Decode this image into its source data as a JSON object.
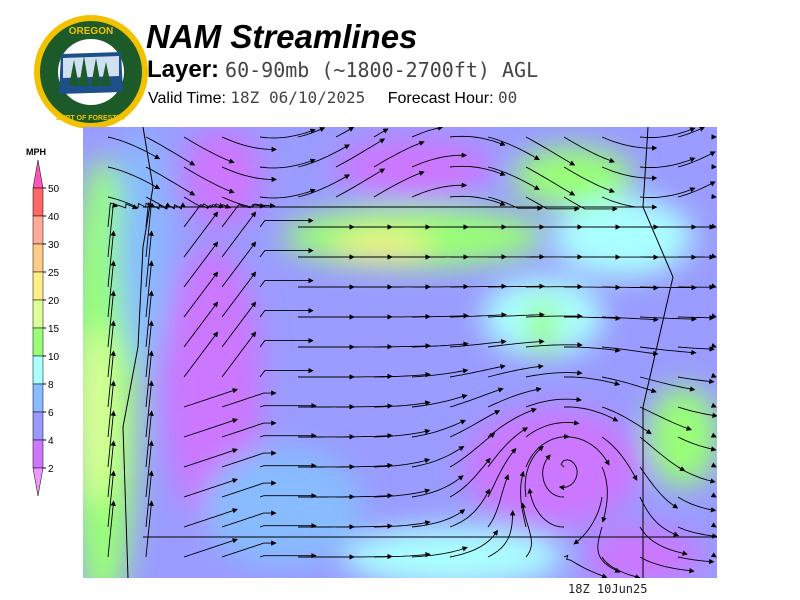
{
  "logo": {
    "text_top": "OREGON",
    "text_bottom": "DEPARTMENT OF FORESTRY"
  },
  "header": {
    "title": "NAM Streamlines",
    "layer_label": "Layer:",
    "layer_value": "60-90mb (~1800-2700ft) AGL",
    "valid_label": "Valid Time:",
    "valid_value": "18Z 06/10/2025",
    "forecast_label": "Forecast Hour:",
    "forecast_value": "00"
  },
  "legend": {
    "unit": "MPH",
    "over_color": "#ff55bb",
    "under_color": "#ee99ff",
    "bins": [
      {
        "label": "50",
        "color": "#ff6666"
      },
      {
        "label": "40",
        "color": "#ffaa99"
      },
      {
        "label": "30",
        "color": "#ffcc88"
      },
      {
        "label": "25",
        "color": "#ffee88"
      },
      {
        "label": "20",
        "color": "#ddff99"
      },
      {
        "label": "15",
        "color": "#99ff77"
      },
      {
        "label": "10",
        "color": "#aaffff"
      },
      {
        "label": "8",
        "color": "#88bbff"
      },
      {
        "label": "6",
        "color": "#9999ff"
      },
      {
        "label": "4",
        "color": "#cc77ff"
      },
      {
        "label": "2",
        "color": null
      }
    ]
  },
  "footer": {
    "stamp": "18Z 10Jun25"
  }
}
